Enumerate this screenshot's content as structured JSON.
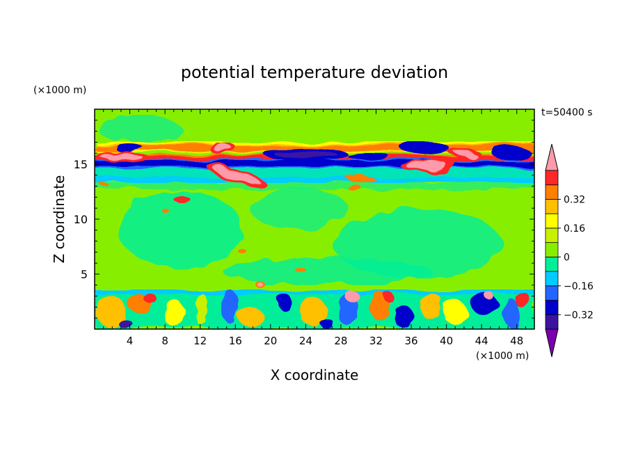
{
  "chart_data": {
    "type": "heatmap",
    "title": "potential temperature deviation",
    "xlabel": "X coordinate",
    "ylabel": "Z coordinate",
    "x_units": "(×1000 m)",
    "y_units": "(×1000 m)",
    "time_label": "t=50400 s",
    "xlim": [
      0,
      50
    ],
    "ylim": [
      0,
      20
    ],
    "x_ticks": [
      4,
      8,
      12,
      16,
      20,
      24,
      28,
      32,
      36,
      40,
      44,
      48
    ],
    "y_ticks": [
      5,
      10,
      15
    ],
    "colorbar": {
      "levels": [
        -0.48,
        -0.4,
        -0.32,
        -0.24,
        -0.16,
        -0.08,
        0,
        0.08,
        0.16,
        0.24,
        0.32,
        0.4,
        0.48
      ],
      "labels": [
        0.32,
        0.16,
        0,
        -0.16,
        -0.32
      ],
      "label_text": [
        "0.32",
        "0.16",
        "0",
        "−0.16",
        "−0.32"
      ],
      "colors_low_to_high": [
        "#7a00b0",
        "#3a14a0",
        "#0000cc",
        "#2266ff",
        "#00ccff",
        "#00ee99",
        "#88ee00",
        "#c8f000",
        "#ffff00",
        "#ffc000",
        "#ff7f00",
        "#ff2828",
        "#ff9aaa"
      ],
      "extend": "both"
    },
    "features": [
      {
        "desc": "negative band",
        "z": 14.9,
        "x": [
          0,
          50
        ],
        "value": -0.3
      },
      {
        "desc": "positive band",
        "z": 15.6,
        "x": [
          0,
          50
        ],
        "value": 0.28
      },
      {
        "desc": "cyan layer",
        "z": 13.9,
        "x": [
          0,
          50
        ],
        "value": -0.1
      },
      {
        "desc": "pink blob",
        "z": 13.8,
        "x": [
          14,
          19
        ],
        "value": 0.45
      },
      {
        "desc": "pink blob",
        "z": 16.2,
        "x": [
          14,
          16
        ],
        "value": 0.45
      },
      {
        "desc": "pink blob",
        "z": 15.0,
        "x": [
          36,
          41
        ],
        "value": 0.45
      },
      {
        "desc": "turbulent boundary layer",
        "z": [
          0,
          3.5
        ],
        "x": [
          0,
          50
        ],
        "value": "mixed"
      }
    ]
  }
}
